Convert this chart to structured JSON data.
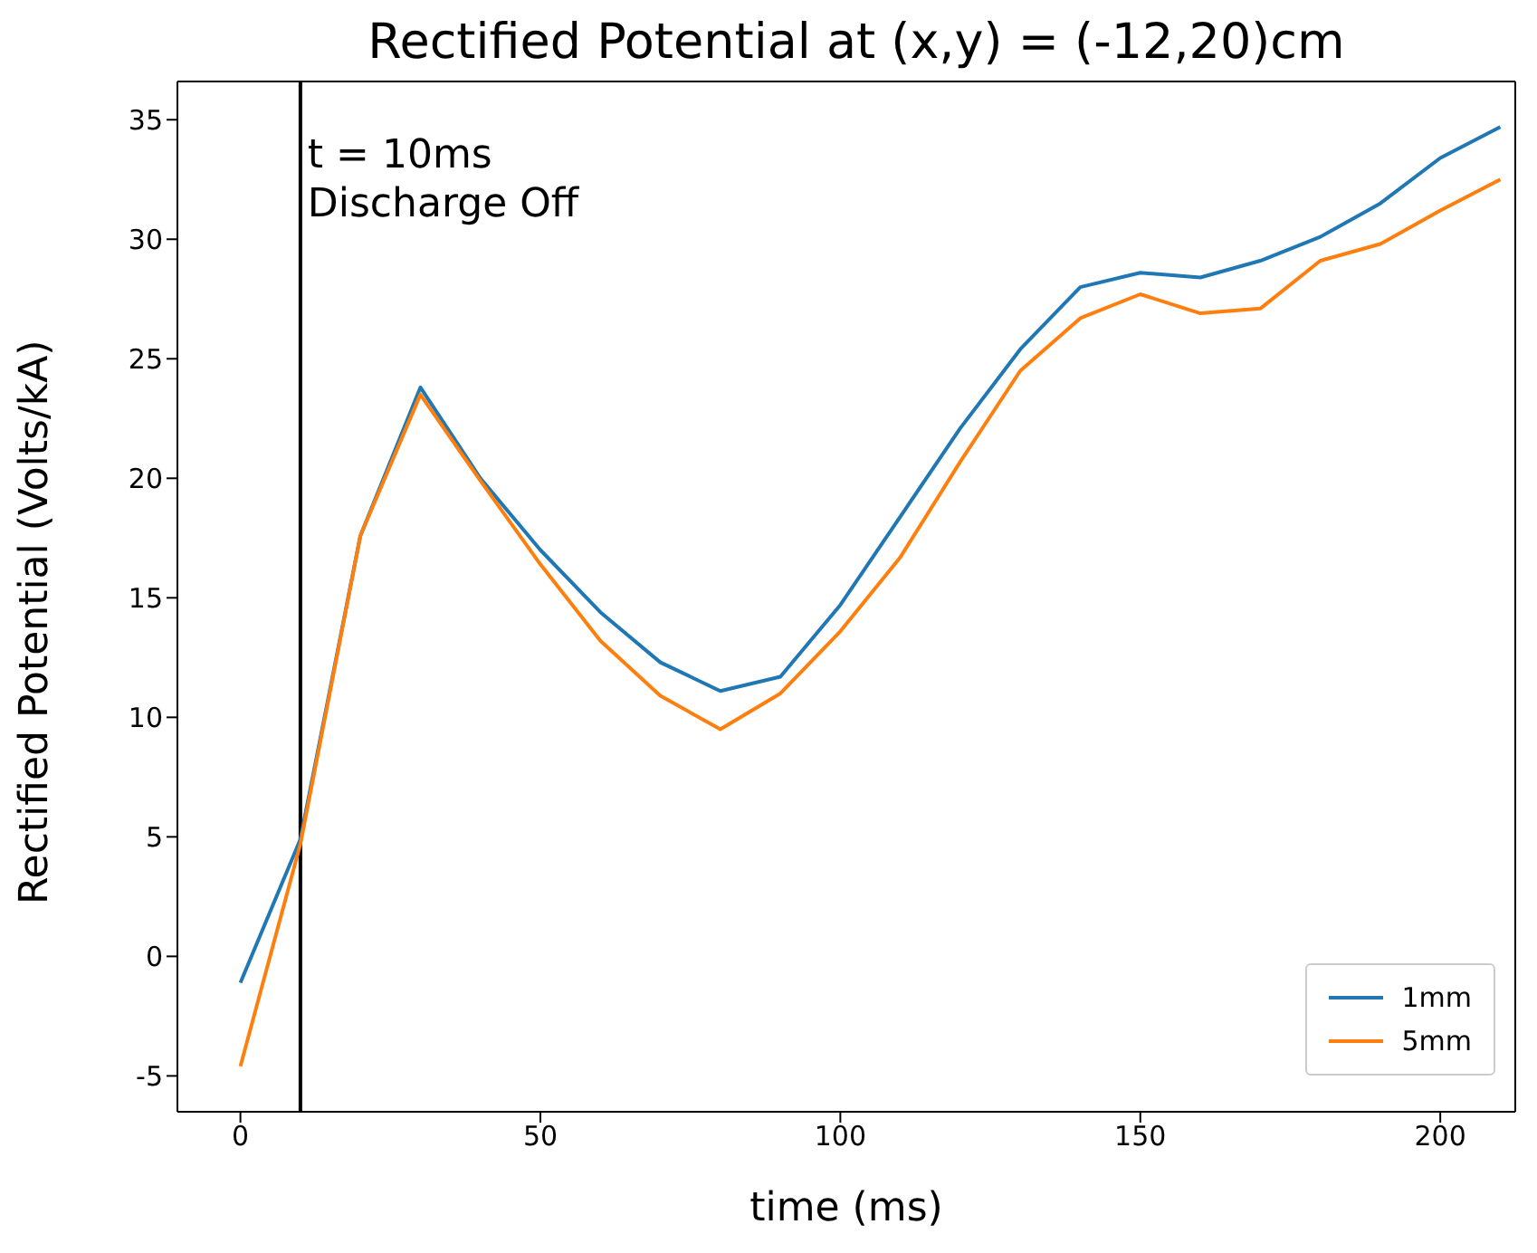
{
  "chart_data": {
    "type": "line",
    "title": "Rectified Potential at (x,y) = (-12,20)cm",
    "xlabel": "time (ms)",
    "ylabel": "Rectified Potential (Volts/kA)",
    "x": [
      0,
      10,
      20,
      30,
      40,
      50,
      60,
      70,
      80,
      90,
      100,
      110,
      120,
      130,
      140,
      150,
      160,
      170,
      180,
      190,
      200,
      210
    ],
    "series": [
      {
        "name": "1mm",
        "color": "#1f77b4",
        "values": [
          -1.1,
          4.9,
          17.6,
          23.8,
          20.0,
          17.0,
          14.4,
          12.3,
          11.1,
          11.7,
          14.7,
          18.4,
          22.1,
          25.4,
          28.0,
          28.6,
          28.4,
          29.1,
          30.1,
          31.5,
          33.4,
          34.7
        ]
      },
      {
        "name": "5mm",
        "color": "#ff7f0e",
        "values": [
          -4.6,
          4.7,
          17.6,
          23.5,
          19.9,
          16.4,
          13.2,
          10.9,
          9.5,
          11.0,
          13.6,
          16.7,
          20.7,
          24.5,
          26.7,
          27.7,
          26.9,
          27.1,
          29.1,
          29.8,
          31.2,
          32.5
        ]
      }
    ],
    "xlim": [
      -10.5,
      212.5
    ],
    "xticks": [
      0,
      50,
      100,
      150,
      200
    ],
    "ylim": [
      -6.5,
      36.6
    ],
    "yticks": [
      -5,
      0,
      5,
      10,
      15,
      20,
      25,
      30,
      35
    ],
    "ref_lines": [
      {
        "axis": "x",
        "value": 10,
        "color": "#000000"
      }
    ],
    "annotations": [
      {
        "text": "t = 10ms\nDischarge Off",
        "x": 10,
        "y": 33
      }
    ],
    "legend": "bottom right",
    "marker": "none",
    "line_style": "solid"
  }
}
